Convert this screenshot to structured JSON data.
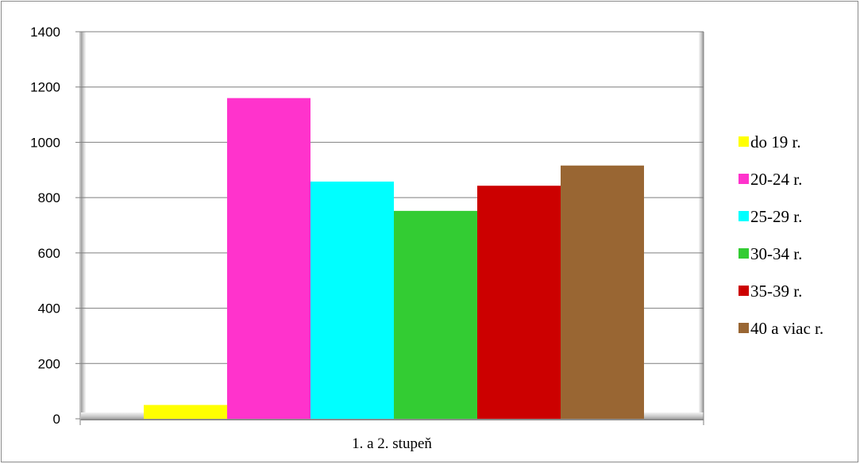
{
  "chart_data": {
    "type": "bar",
    "title": "",
    "xlabel": "",
    "ylabel": "",
    "categories": [
      "1. a 2. stupeň"
    ],
    "ylim": [
      0,
      1400
    ],
    "yticks": [
      0,
      200,
      400,
      600,
      800,
      1000,
      1200,
      1400
    ],
    "grid": true,
    "legend_position": "right",
    "series": [
      {
        "name": "do 19 r.",
        "color": "#ffff00",
        "values": [
          50
        ]
      },
      {
        "name": "20-24 r.",
        "color": "#ff33cc",
        "values": [
          1160
        ]
      },
      {
        "name": "25-29 r.",
        "color": "#00ffff",
        "values": [
          858
        ]
      },
      {
        "name": "30-34 r.",
        "color": "#33cc33",
        "values": [
          752
        ]
      },
      {
        "name": "35-39 r.",
        "color": "#cc0000",
        "values": [
          843
        ]
      },
      {
        "name": "40 a viac r.",
        "color": "#996633",
        "values": [
          916
        ]
      }
    ]
  }
}
